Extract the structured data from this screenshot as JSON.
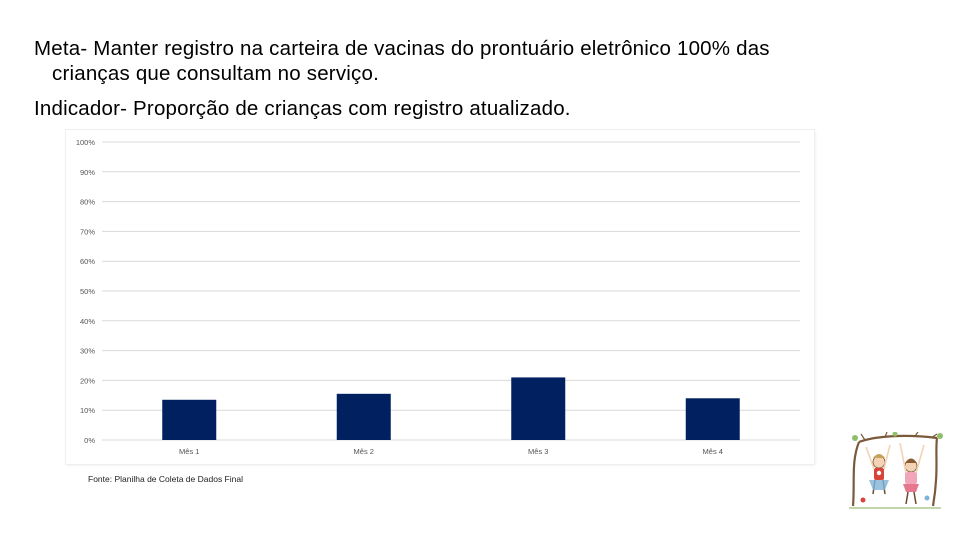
{
  "slide": {
    "goal_line1": "Meta- Manter registro na carteira de vacinas do prontuário eletrônico  100%  das",
    "goal_line2": "crianças que consultam no serviço.",
    "indicator": "Indicador- Proporção de crianças com registro atualizado.",
    "source": "Fonte: Planilha de Coleta de Dados Final"
  },
  "chart_data": {
    "type": "bar",
    "categories": [
      "Mês 1",
      "Mês 2",
      "Mês 3",
      "Mês 4"
    ],
    "values": [
      13.5,
      15.5,
      21,
      14
    ],
    "ylim": [
      0,
      100
    ],
    "yticks": [
      0,
      10,
      20,
      30,
      40,
      50,
      60,
      70,
      80,
      90,
      100
    ],
    "ytick_labels": [
      "0%",
      "10%",
      "20%",
      "30%",
      "40%",
      "50%",
      "60%",
      "70%",
      "80%",
      "90%",
      "100%"
    ],
    "grid": true,
    "bar_color": "#002060",
    "grid_color": "#d9d9d9"
  },
  "illustration": {
    "icon": "children-playing-illustration"
  }
}
